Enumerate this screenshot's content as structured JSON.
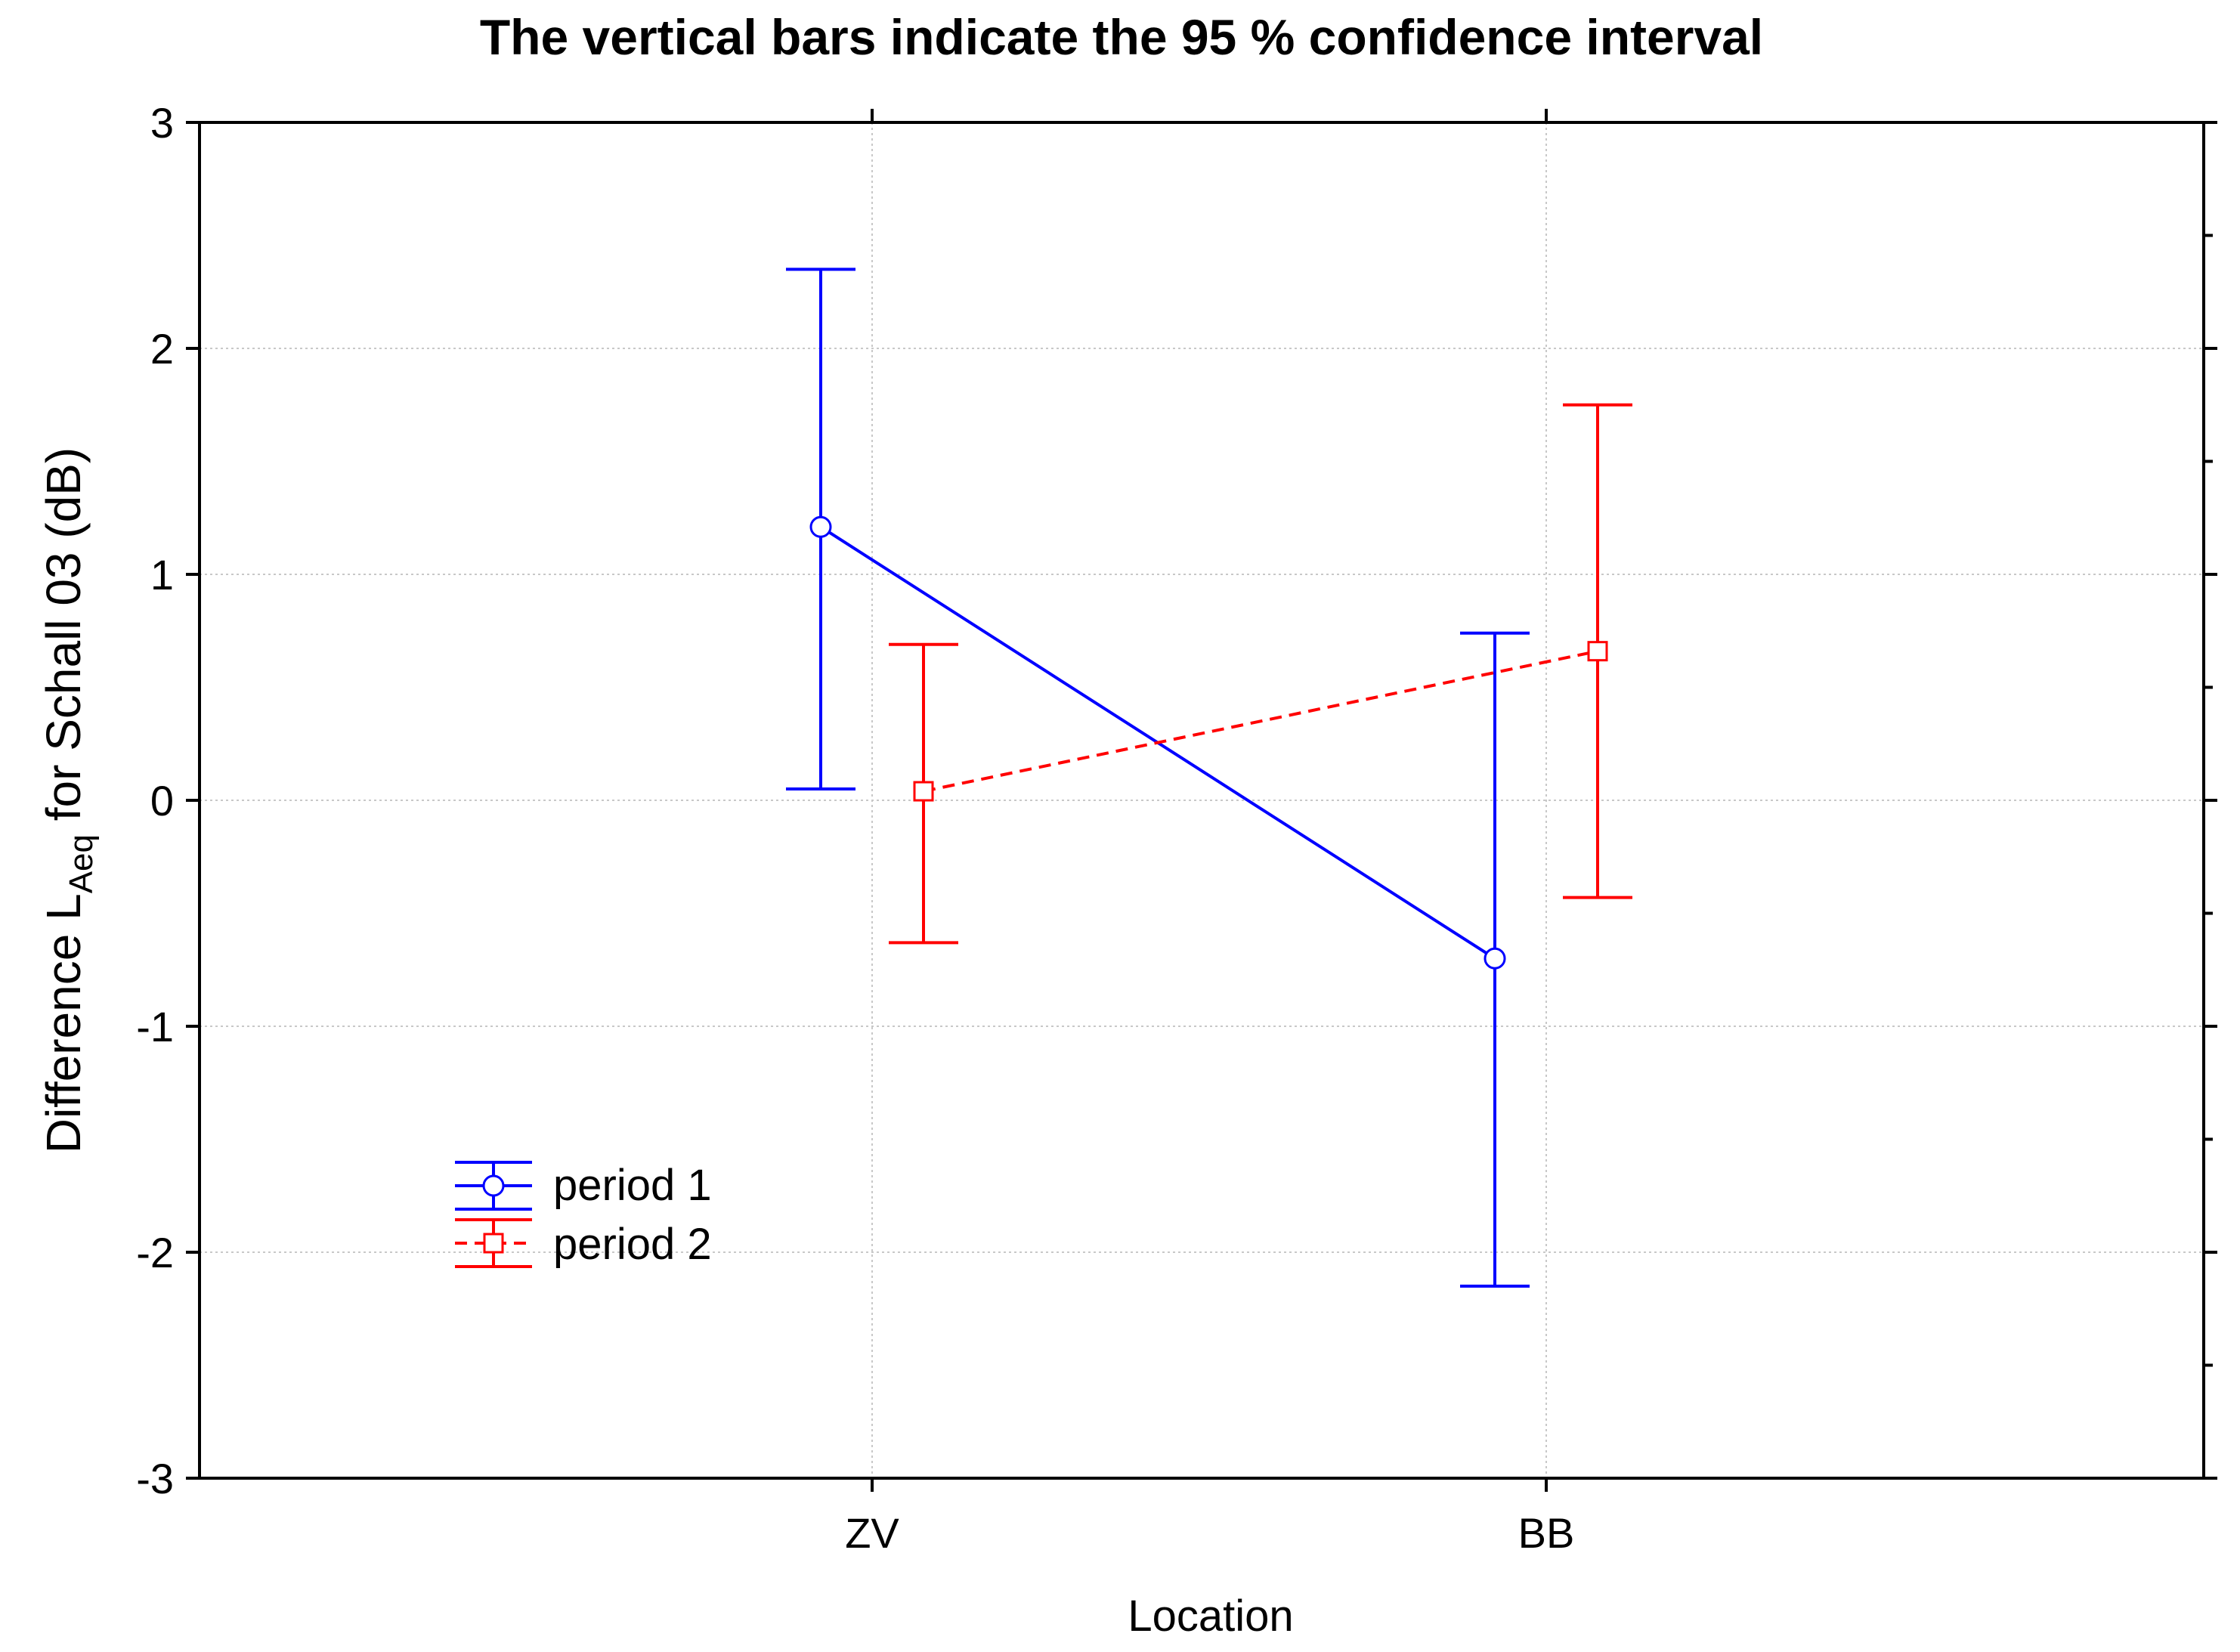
{
  "chart_data": {
    "type": "line",
    "title": "The vertical bars indicate the 95 % confidence interval",
    "xlabel": "Location",
    "ylabel": {
      "prefix": "Difference L",
      "subscript": "Aeq",
      "suffix": " for Schall 03 (dB)"
    },
    "categories": [
      "ZV",
      "BB"
    ],
    "ylim": [
      -3,
      3
    ],
    "yticks": [
      -3,
      -2,
      -1,
      0,
      1,
      2,
      3
    ],
    "grid": true,
    "legend_position": "bottom-left",
    "series": [
      {
        "name": "period 1",
        "color": "#0000ff",
        "line_style": "solid",
        "marker": "circle",
        "values": [
          1.21,
          -0.7
        ],
        "ci_upper": [
          2.35,
          0.74
        ],
        "ci_lower": [
          0.05,
          -2.15
        ]
      },
      {
        "name": "period 2",
        "color": "#ff0000",
        "line_style": "dashed",
        "marker": "square",
        "values": [
          0.04,
          0.66
        ],
        "ci_upper": [
          0.69,
          1.75
        ],
        "ci_lower": [
          -0.63,
          -0.43
        ]
      }
    ]
  }
}
